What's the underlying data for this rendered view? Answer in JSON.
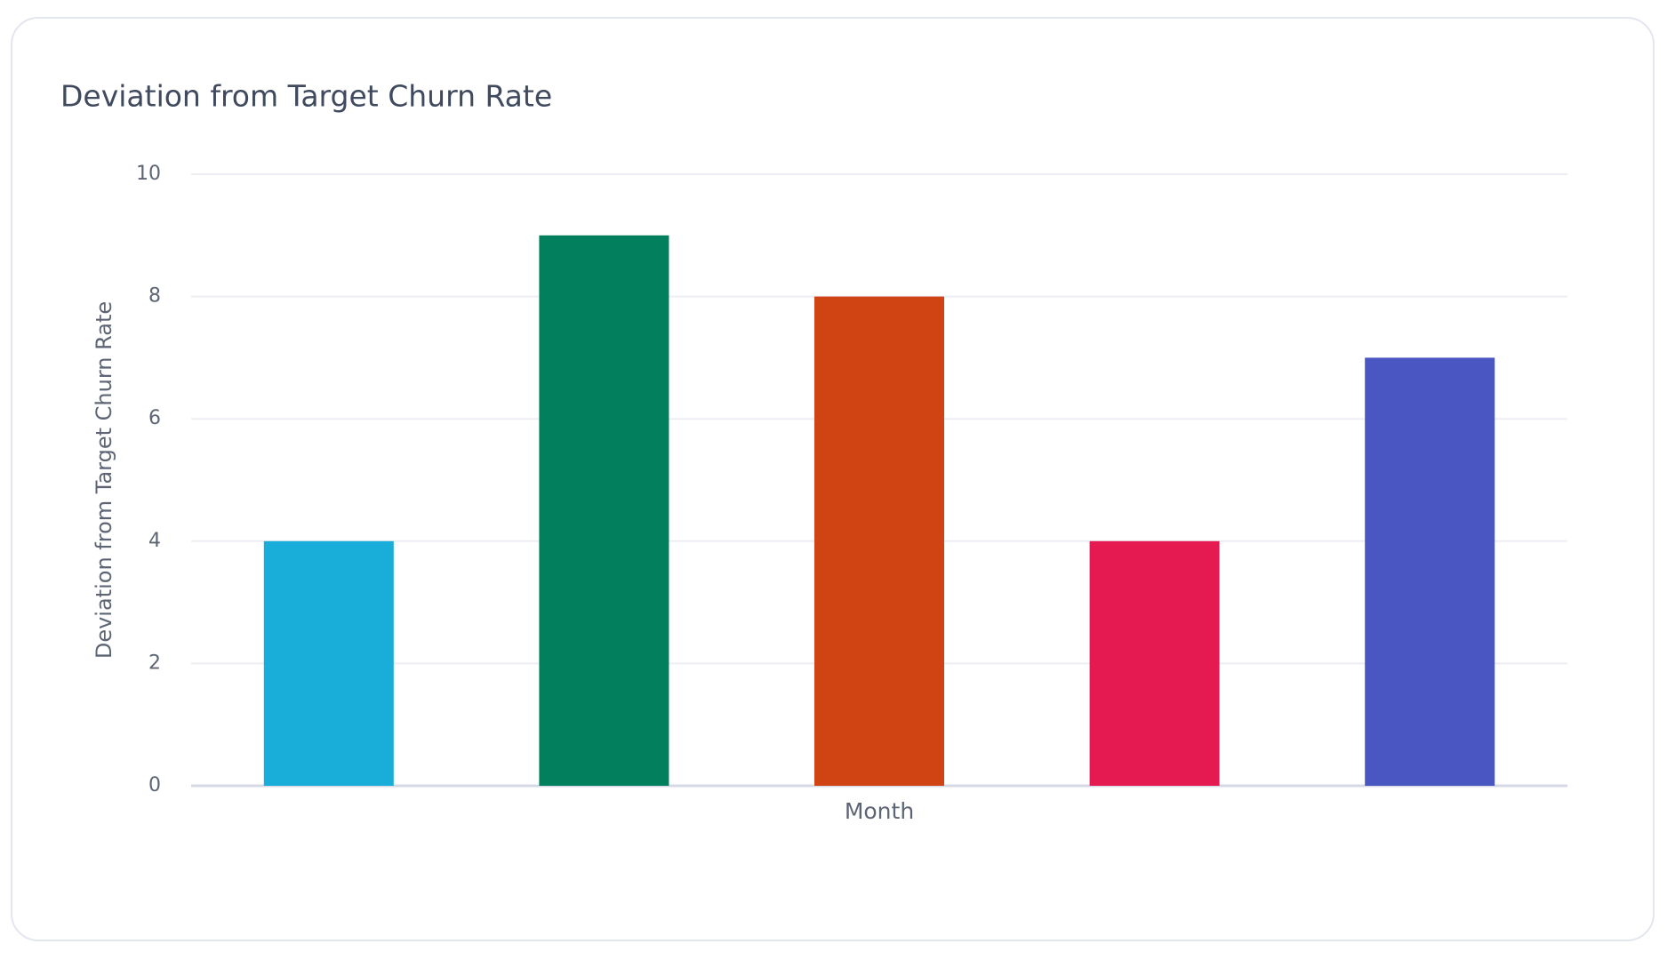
{
  "chart_data": {
    "type": "bar",
    "title": "Deviation from Target Churn Rate",
    "x_label": "Month",
    "y_label": "Deviation from Target Churn Rate",
    "categories": [
      null,
      null,
      null,
      null,
      null
    ],
    "values": [
      4,
      9,
      8,
      4,
      7
    ],
    "colors": [
      "#19aed9",
      "#02805d",
      "#d04414",
      "#e41a50",
      "#4a56c2"
    ],
    "ylim": [
      0,
      10
    ],
    "yticks": [
      0,
      2,
      4,
      6,
      8,
      10
    ],
    "grid": true
  }
}
